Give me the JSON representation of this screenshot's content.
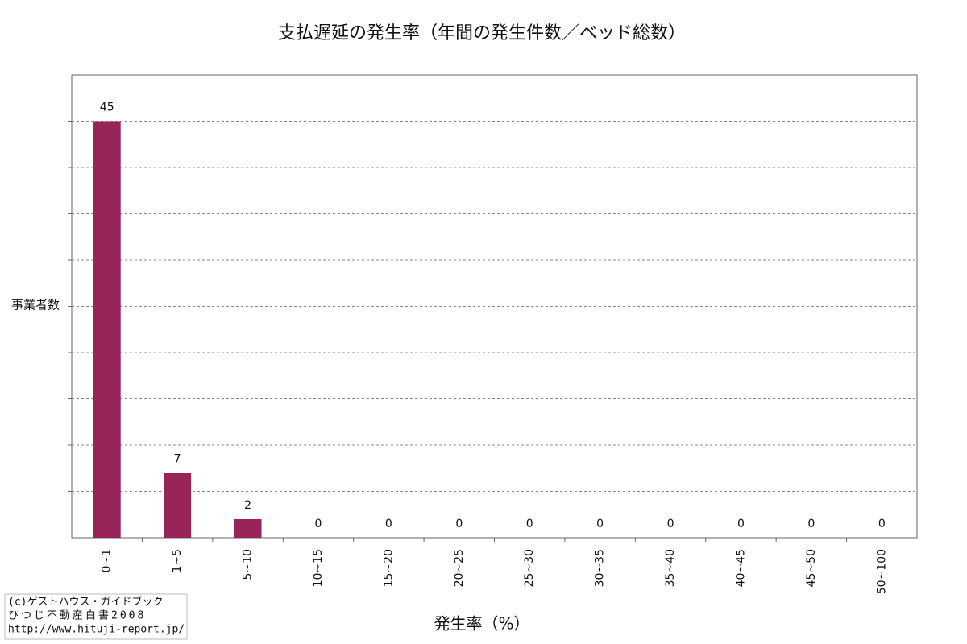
{
  "chart_data": {
    "type": "bar",
    "title": "支払遅延の発生率（年間の発生件数／ベッド総数）",
    "x_label": "発生率（%）",
    "y_label": "事業者数",
    "categories": [
      "0~1",
      "1~5",
      "5~10",
      "10~15",
      "15~20",
      "20~25",
      "25~30",
      "30~35",
      "35~40",
      "40~45",
      "45~50",
      "50~100"
    ],
    "values": [
      45,
      7,
      2,
      0,
      0,
      0,
      0,
      0,
      0,
      0,
      0,
      0
    ],
    "color": "#98245a",
    "ylim": [
      0,
      50
    ],
    "yticks": [
      5,
      10,
      15,
      20,
      25,
      30,
      35,
      40,
      45
    ],
    "grid": true,
    "credit": [
      "(c)ゲストハウス・ガイドブック",
      "ひつじ不動産白書2008",
      "http://www.hituji-report.jp/"
    ]
  }
}
